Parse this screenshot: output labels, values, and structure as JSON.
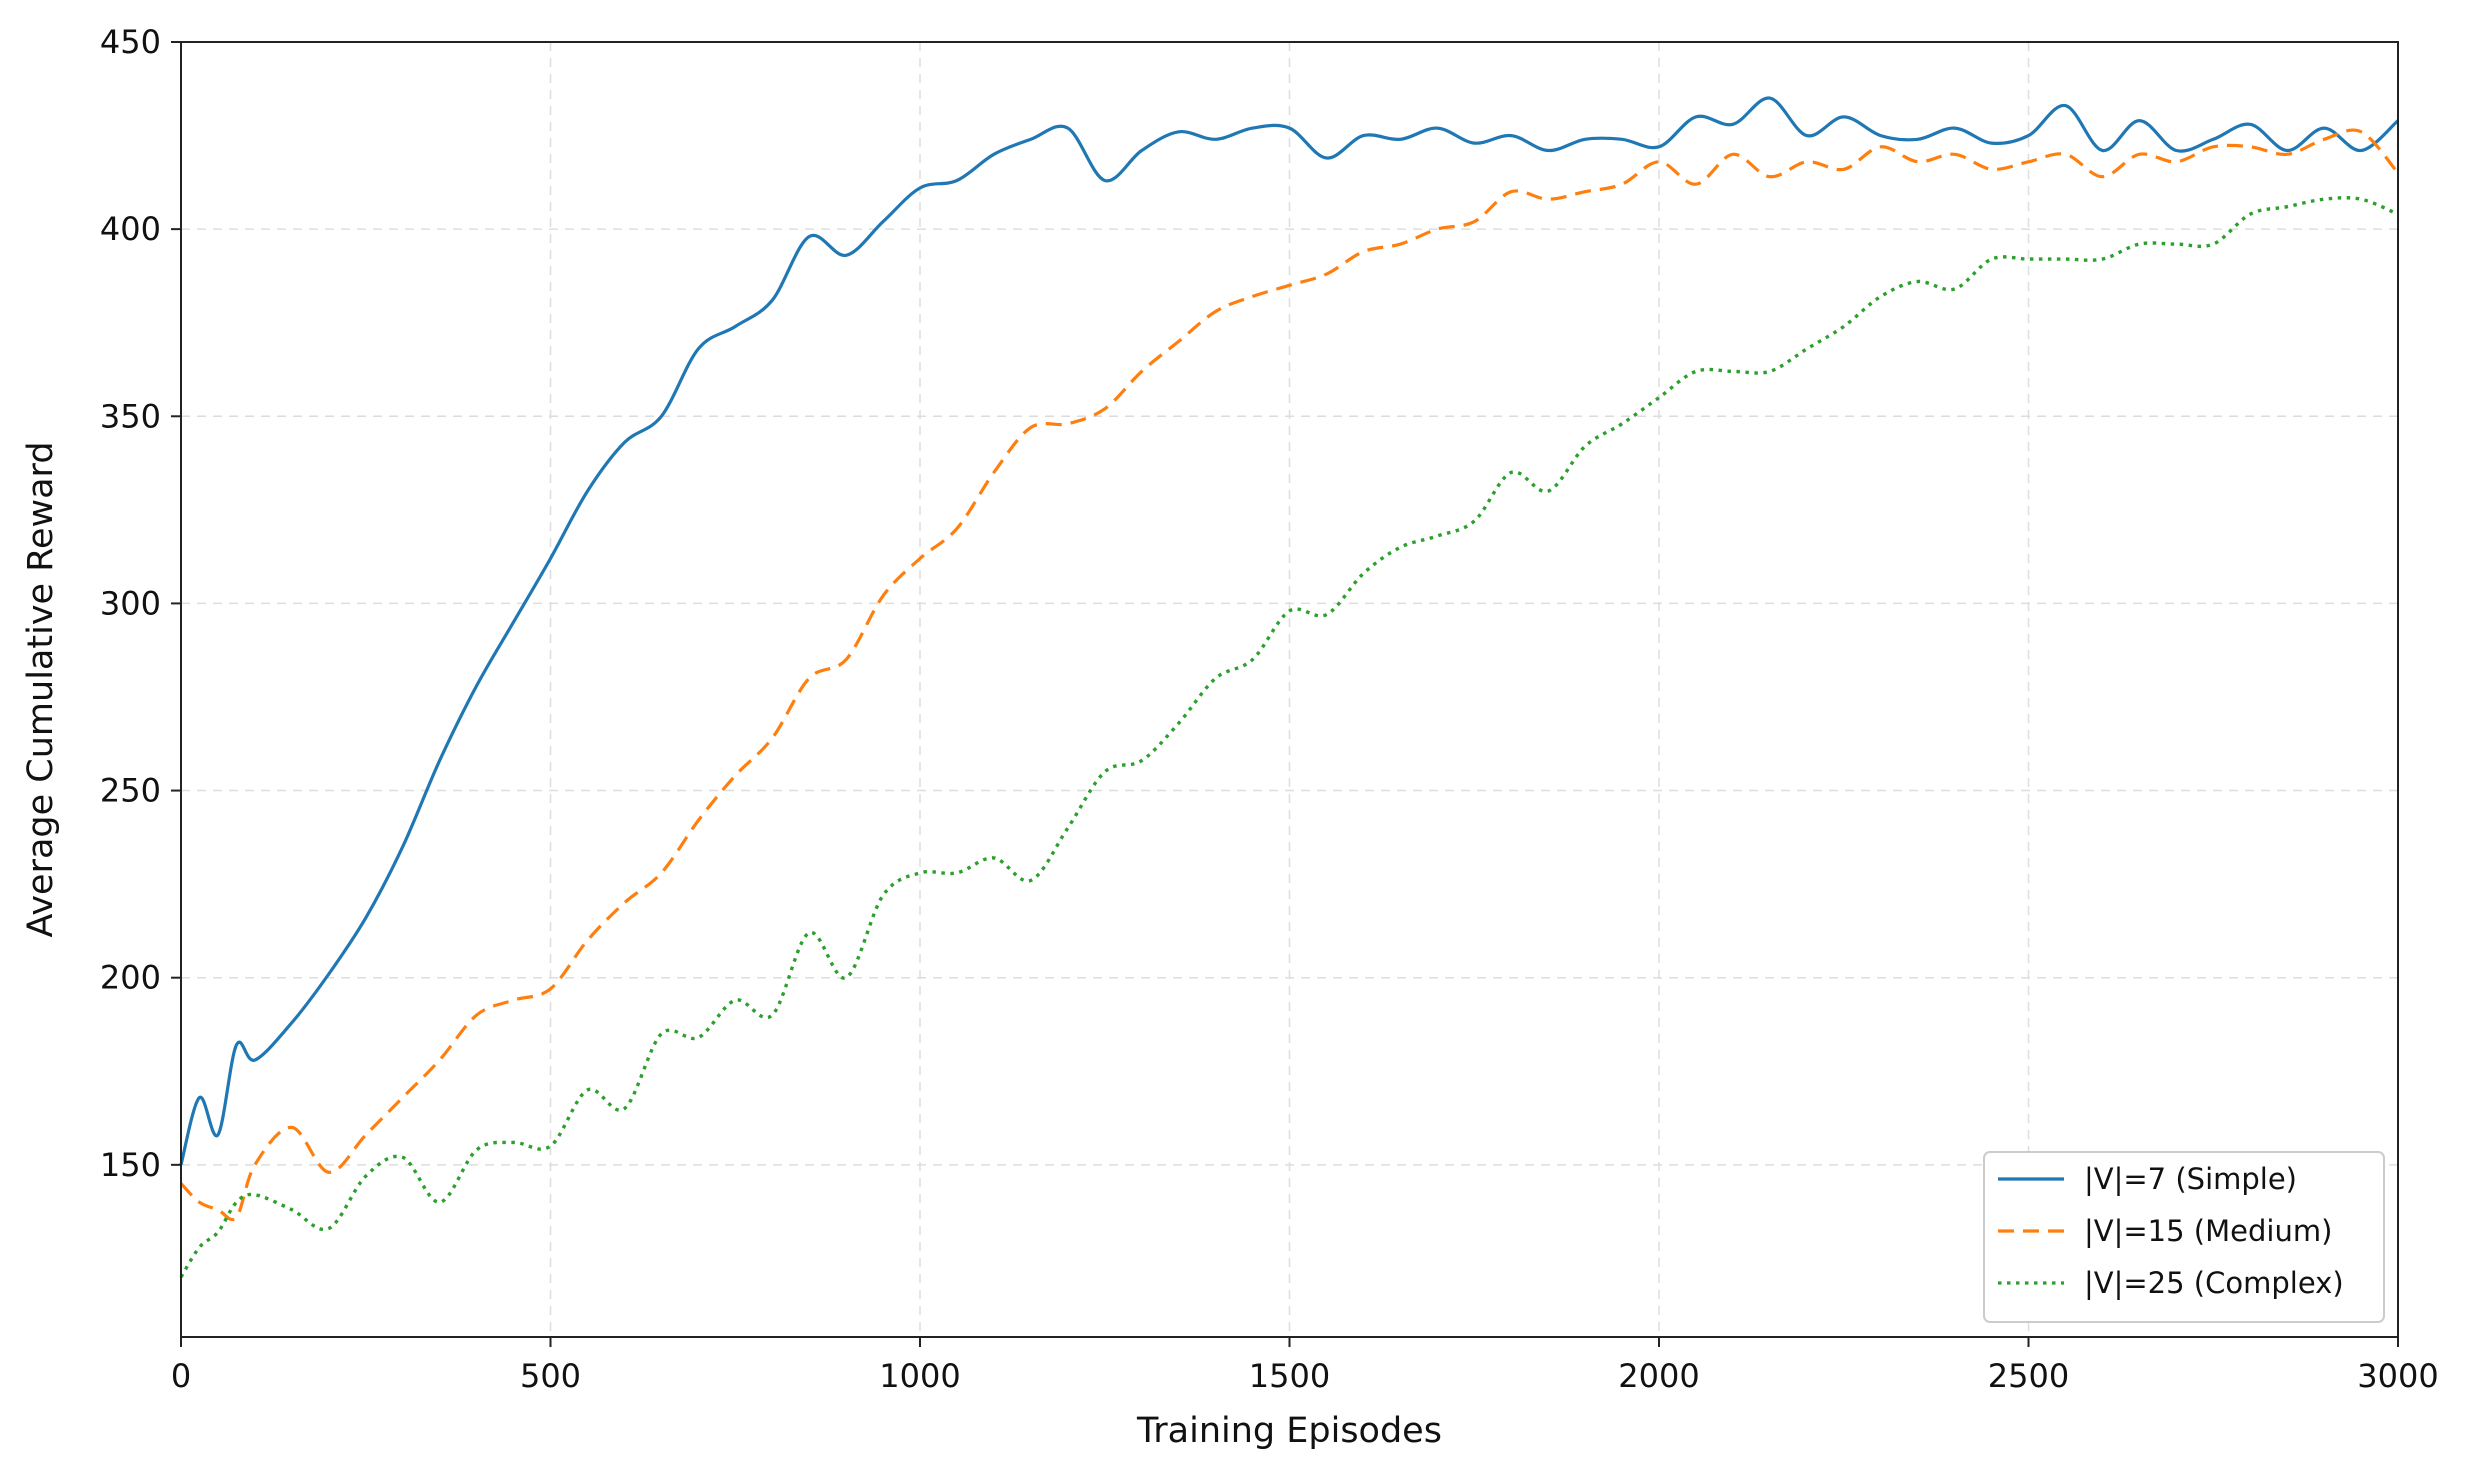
{
  "chart_data": {
    "type": "line",
    "title": "",
    "xlabel": "Training Episodes",
    "ylabel": "Average Cumulative Reward",
    "xlim": [
      0,
      3000
    ],
    "ylim": [
      104,
      450
    ],
    "xticks": [
      0,
      500,
      1000,
      1500,
      2000,
      2500,
      3000
    ],
    "yticks": [
      150,
      200,
      250,
      300,
      350,
      400,
      450
    ],
    "grid": true,
    "legend_position": "bottom-right",
    "series": [
      {
        "name": "|V|=7 (Simple)",
        "color": "#1f77b4",
        "style": "solid",
        "x": [
          0,
          25,
          50,
          75,
          100,
          150,
          200,
          250,
          300,
          350,
          400,
          450,
          500,
          550,
          600,
          650,
          700,
          750,
          800,
          850,
          900,
          950,
          1000,
          1050,
          1100,
          1150,
          1200,
          1250,
          1300,
          1350,
          1400,
          1450,
          1500,
          1550,
          1600,
          1650,
          1700,
          1750,
          1800,
          1850,
          1900,
          1950,
          2000,
          2050,
          2100,
          2150,
          2200,
          2250,
          2300,
          2350,
          2400,
          2450,
          2500,
          2550,
          2600,
          2650,
          2700,
          2750,
          2800,
          2850,
          2900,
          2950,
          3000
        ],
        "values": [
          150,
          168,
          158,
          182,
          178,
          188,
          201,
          216,
          235,
          258,
          278,
          295,
          312,
          330,
          343,
          350,
          368,
          374,
          381,
          398,
          393,
          402,
          411,
          413,
          420,
          424,
          427,
          413,
          421,
          426,
          424,
          427,
          427,
          419,
          425,
          424,
          427,
          423,
          425,
          421,
          424,
          424,
          422,
          430,
          428,
          435,
          425,
          430,
          425,
          424,
          427,
          423,
          425,
          433,
          421,
          429,
          421,
          424,
          428,
          421,
          427,
          421,
          429
        ]
      },
      {
        "name": "|V|=15 (Medium)",
        "color": "#ff7f0e",
        "style": "dashed",
        "x": [
          0,
          25,
          50,
          75,
          100,
          150,
          200,
          250,
          300,
          350,
          400,
          450,
          500,
          550,
          600,
          650,
          700,
          750,
          800,
          850,
          900,
          950,
          1000,
          1050,
          1100,
          1150,
          1200,
          1250,
          1300,
          1350,
          1400,
          1450,
          1500,
          1550,
          1600,
          1650,
          1700,
          1750,
          1800,
          1850,
          1900,
          1950,
          2000,
          2050,
          2100,
          2150,
          2200,
          2250,
          2300,
          2350,
          2400,
          2450,
          2500,
          2550,
          2600,
          2650,
          2700,
          2750,
          2800,
          2850,
          2900,
          2950,
          3000
        ],
        "values": [
          145,
          140,
          138,
          136,
          150,
          160,
          148,
          158,
          168,
          178,
          190,
          194,
          197,
          210,
          220,
          228,
          242,
          254,
          264,
          280,
          285,
          302,
          312,
          320,
          335,
          347,
          348,
          352,
          362,
          370,
          378,
          382,
          385,
          388,
          394,
          396,
          400,
          402,
          410,
          408,
          410,
          412,
          418,
          412,
          420,
          414,
          418,
          416,
          422,
          418,
          420,
          416,
          418,
          420,
          414,
          420,
          418,
          422,
          422,
          420,
          424,
          426,
          415
        ]
      },
      {
        "name": "|V|=25 (Complex)",
        "color": "#2ca02c",
        "style": "dotted",
        "x": [
          0,
          25,
          50,
          75,
          100,
          150,
          200,
          250,
          300,
          350,
          400,
          450,
          500,
          550,
          600,
          650,
          700,
          750,
          800,
          850,
          900,
          950,
          1000,
          1050,
          1100,
          1150,
          1200,
          1250,
          1300,
          1350,
          1400,
          1450,
          1500,
          1550,
          1600,
          1650,
          1700,
          1750,
          1800,
          1850,
          1900,
          1950,
          2000,
          2050,
          2100,
          2150,
          2200,
          2250,
          2300,
          2350,
          2400,
          2450,
          2500,
          2550,
          2600,
          2650,
          2700,
          2750,
          2800,
          2850,
          2900,
          2950,
          3000
        ],
        "values": [
          120,
          128,
          132,
          140,
          142,
          138,
          133,
          147,
          152,
          140,
          154,
          156,
          155,
          170,
          165,
          185,
          184,
          194,
          190,
          212,
          200,
          222,
          228,
          228,
          232,
          226,
          240,
          255,
          258,
          268,
          280,
          285,
          298,
          297,
          308,
          315,
          318,
          322,
          335,
          330,
          342,
          348,
          355,
          362,
          362,
          362,
          368,
          374,
          382,
          386,
          384,
          392,
          392,
          392,
          392,
          396,
          396,
          396,
          404,
          406,
          408,
          408,
          404
        ]
      }
    ]
  }
}
